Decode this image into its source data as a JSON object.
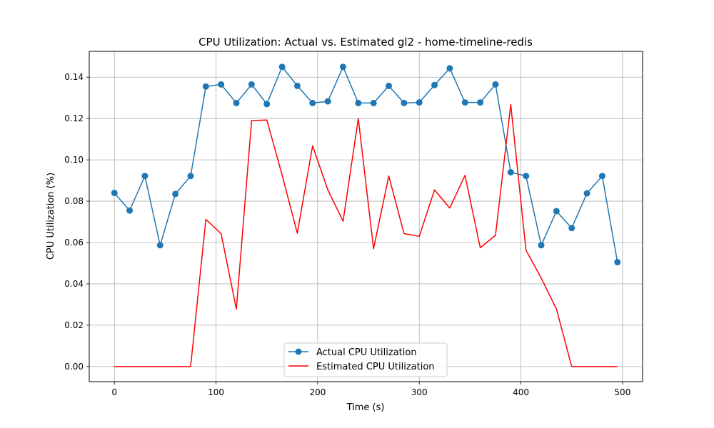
{
  "chart_data": {
    "type": "line",
    "title": "CPU Utilization: Actual vs. Estimated gl2 - home-timeline-redis",
    "xlabel": "Time (s)",
    "ylabel": "CPU Utilization (%)",
    "xlim": [
      -24.75,
      519.75
    ],
    "ylim": [
      -0.0073,
      0.1525
    ],
    "xticks": [
      0,
      100,
      200,
      300,
      400,
      500
    ],
    "xtick_labels": [
      "0",
      "100",
      "200",
      "300",
      "400",
      "500"
    ],
    "yticks": [
      0.0,
      0.02,
      0.04,
      0.06,
      0.08,
      0.1,
      0.12,
      0.14
    ],
    "ytick_labels": [
      "0.00",
      "0.02",
      "0.04",
      "0.06",
      "0.08",
      "0.10",
      "0.12",
      "0.14"
    ],
    "grid": true,
    "legend_position": "lower-center",
    "x": [
      0,
      15,
      30,
      45,
      60,
      75,
      90,
      105,
      120,
      135,
      150,
      165,
      180,
      195,
      210,
      225,
      240,
      255,
      270,
      285,
      300,
      315,
      330,
      345,
      360,
      375,
      390,
      405,
      420,
      435,
      450,
      465,
      480,
      495
    ],
    "series": [
      {
        "name": "Actual CPU Utilization",
        "color": "#1f77b4",
        "marker": "circle",
        "values": [
          0.084,
          0.0755,
          0.0922,
          0.0587,
          0.0835,
          0.0922,
          0.1355,
          0.1365,
          0.1275,
          0.1365,
          0.127,
          0.145,
          0.1358,
          0.1275,
          0.1283,
          0.145,
          0.1275,
          0.1275,
          0.1358,
          0.1275,
          0.1278,
          0.1362,
          0.1443,
          0.1278,
          0.1278,
          0.1365,
          0.094,
          0.0922,
          0.0587,
          0.0752,
          0.067,
          0.0838,
          0.0922,
          0.0505
        ]
      },
      {
        "name": "Estimated CPU Utilization",
        "color": "#ff0000",
        "marker": "none",
        "values": [
          0.0,
          0.0,
          0.0,
          0.0,
          0.0,
          0.0,
          0.0712,
          0.0643,
          0.0278,
          0.119,
          0.1193,
          0.0927,
          0.0645,
          0.1068,
          0.0855,
          0.0703,
          0.12,
          0.057,
          0.0922,
          0.0643,
          0.063,
          0.0855,
          0.0767,
          0.0925,
          0.0575,
          0.0635,
          0.1268,
          0.0563,
          0.0428,
          0.0278,
          0.0,
          0.0,
          0.0,
          0.0
        ]
      }
    ]
  }
}
